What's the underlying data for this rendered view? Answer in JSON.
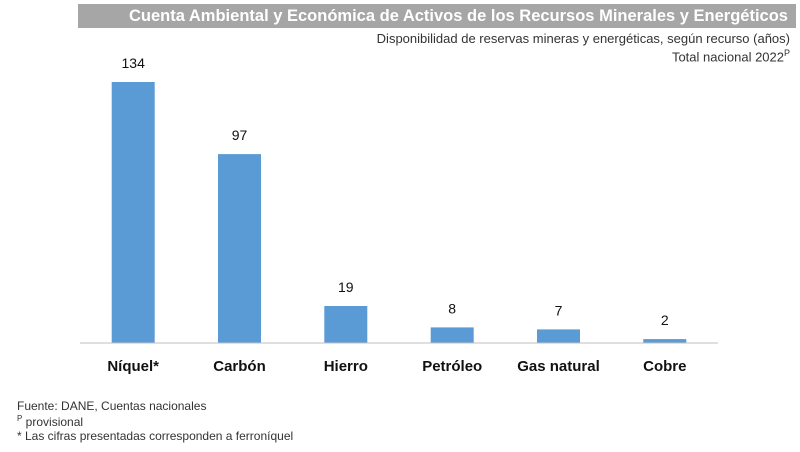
{
  "header": {
    "title": "Cuenta Ambiental y Económica de Activos de los Recursos Minerales y Energéticos",
    "subtitle": "Disponibilidad de reservas mineras y energéticas, según recurso (años)",
    "scope": "Total nacional  2022",
    "scope_mark": "P"
  },
  "chart_data": {
    "type": "bar",
    "title": "Cuenta Ambiental y Económica de Activos de los Recursos Minerales y Energéticos",
    "subtitle": "Disponibilidad de reservas mineras y energéticas, según recurso (años)",
    "categories": [
      "Níquel*",
      "Carbón",
      "Hierro",
      "Petróleo",
      "Gas natural",
      "Cobre"
    ],
    "values": [
      134,
      97,
      19,
      8,
      7,
      2
    ],
    "value_labels": [
      "134",
      "97",
      "19",
      "8",
      "7",
      "2"
    ],
    "xlabel": "",
    "ylabel": "",
    "ylim": [
      0,
      134
    ],
    "grid": false,
    "legend": "none",
    "bar_color": "#5b9bd5"
  },
  "footer": {
    "source": "Fuente: DANE, Cuentas nacionales",
    "provisional_mark": "P",
    "provisional": " provisional",
    "note": "* Las cifras presentadas corresponden a ferroníquel"
  }
}
